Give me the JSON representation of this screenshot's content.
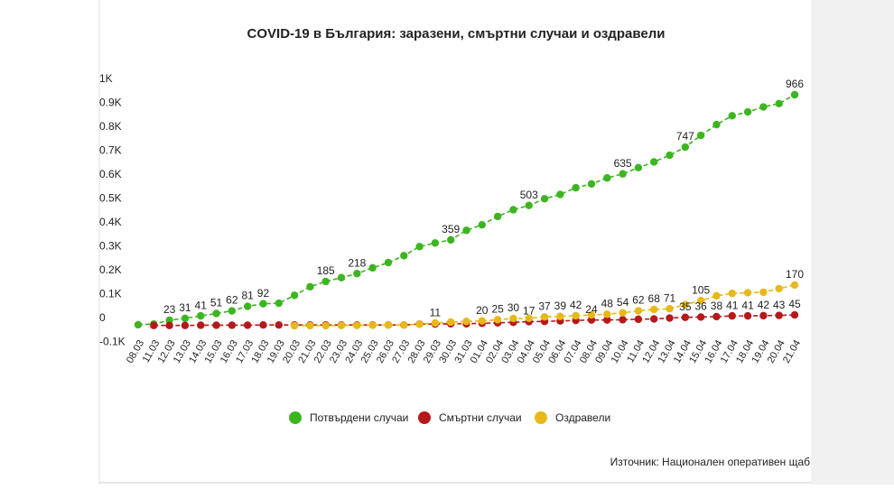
{
  "chart_data": {
    "type": "line",
    "title": "COVID-19 в България: заразени, смъртни случаи и оздравели",
    "source": "Източник: Национален оперативен щаб",
    "categories": [
      "08.03",
      "11.03",
      "12.03",
      "13.03",
      "14.03",
      "15.03",
      "16.03",
      "17.03",
      "18.03",
      "19.03",
      "20.03",
      "21.03",
      "22.03",
      "23.03",
      "24.03",
      "25.03",
      "26.03",
      "27.03",
      "28.03",
      "29.03",
      "30.03",
      "31.03",
      "01.04",
      "02.04",
      "03.04",
      "04.04",
      "05.04",
      "06.04",
      "07.04",
      "08.04",
      "09.04",
      "10.04",
      "11.04",
      "12.04",
      "13.04",
      "14.04",
      "15.04",
      "16.04",
      "17.04",
      "18.04",
      "19.04",
      "20.04",
      "21.04"
    ],
    "ylim": [
      -100,
      1000
    ],
    "yticks": [
      {
        "value": -100,
        "label": "-0.1K"
      },
      0,
      {
        "value": 100,
        "label": "0.1K"
      },
      {
        "value": 200,
        "label": "0.2K"
      },
      {
        "value": 300,
        "label": "0.3K"
      },
      {
        "value": 400,
        "label": "0.4K"
      },
      {
        "value": 500,
        "label": "0.5K"
      },
      {
        "value": 600,
        "label": "0.6K"
      },
      {
        "value": 700,
        "label": "0.7K"
      },
      {
        "value": 800,
        "label": "0.8K"
      },
      {
        "value": 900,
        "label": "0.9K"
      },
      {
        "value": 1000,
        "label": "1K"
      }
    ],
    "grid": false,
    "legend": "bottom",
    "series": [
      {
        "name": "Потвърдени случаи",
        "color": "#3cb521",
        "values": [
          4,
          7,
          23,
          31,
          41,
          51,
          62,
          81,
          92,
          94,
          127,
          163,
          185,
          201,
          218,
          242,
          264,
          293,
          331,
          346,
          359,
          399,
          422,
          457,
          485,
          503,
          531,
          549,
          577,
          593,
          618,
          635,
          661,
          685,
          713,
          747,
          796,
          841,
          878,
          894,
          915,
          929,
          966
        ],
        "value_labels": [
          null,
          null,
          "23",
          "31",
          "41",
          "51",
          "62",
          "81",
          "92",
          null,
          null,
          null,
          "185",
          null,
          "218",
          null,
          null,
          null,
          null,
          null,
          "359",
          null,
          null,
          null,
          null,
          "503",
          null,
          null,
          null,
          null,
          null,
          "635",
          null,
          null,
          null,
          "747",
          null,
          null,
          null,
          null,
          null,
          null,
          "966"
        ]
      },
      {
        "name": "Смъртни случаи",
        "color": "#b5191a",
        "values": [
          null,
          1,
          1,
          1,
          2,
          2,
          2,
          2,
          3,
          3,
          3,
          3,
          3,
          3,
          3,
          3,
          3,
          3,
          7,
          7,
          8,
          8,
          10,
          12,
          14,
          17,
          18,
          20,
          22,
          24,
          24,
          25,
          27,
          28,
          32,
          35,
          36,
          38,
          41,
          41,
          42,
          43,
          45
        ],
        "value_labels": [
          null,
          null,
          null,
          null,
          null,
          null,
          null,
          null,
          null,
          null,
          null,
          null,
          null,
          null,
          null,
          null,
          null,
          null,
          null,
          null,
          null,
          null,
          null,
          null,
          null,
          "17",
          null,
          null,
          null,
          "24",
          null,
          null,
          null,
          null,
          null,
          "35",
          "36",
          "38",
          "41",
          "41",
          "42",
          "43",
          "45"
        ]
      },
      {
        "name": "Оздравели",
        "color": "#e8b818",
        "values": [
          null,
          null,
          null,
          null,
          null,
          null,
          null,
          null,
          null,
          null,
          0,
          0,
          0,
          1,
          1,
          2,
          3,
          3,
          7,
          11,
          15,
          18,
          20,
          25,
          30,
          31,
          37,
          39,
          42,
          45,
          48,
          54,
          62,
          68,
          71,
          88,
          105,
          125,
          135,
          138,
          140,
          155,
          170
        ],
        "value_labels": [
          null,
          null,
          null,
          null,
          null,
          null,
          null,
          null,
          null,
          null,
          null,
          null,
          null,
          null,
          null,
          null,
          null,
          null,
          null,
          "11",
          null,
          null,
          "20",
          "25",
          "30",
          null,
          "37",
          "39",
          "42",
          null,
          "48",
          "54",
          "62",
          "68",
          "71",
          null,
          "105",
          null,
          null,
          null,
          null,
          null,
          "170"
        ]
      }
    ]
  }
}
